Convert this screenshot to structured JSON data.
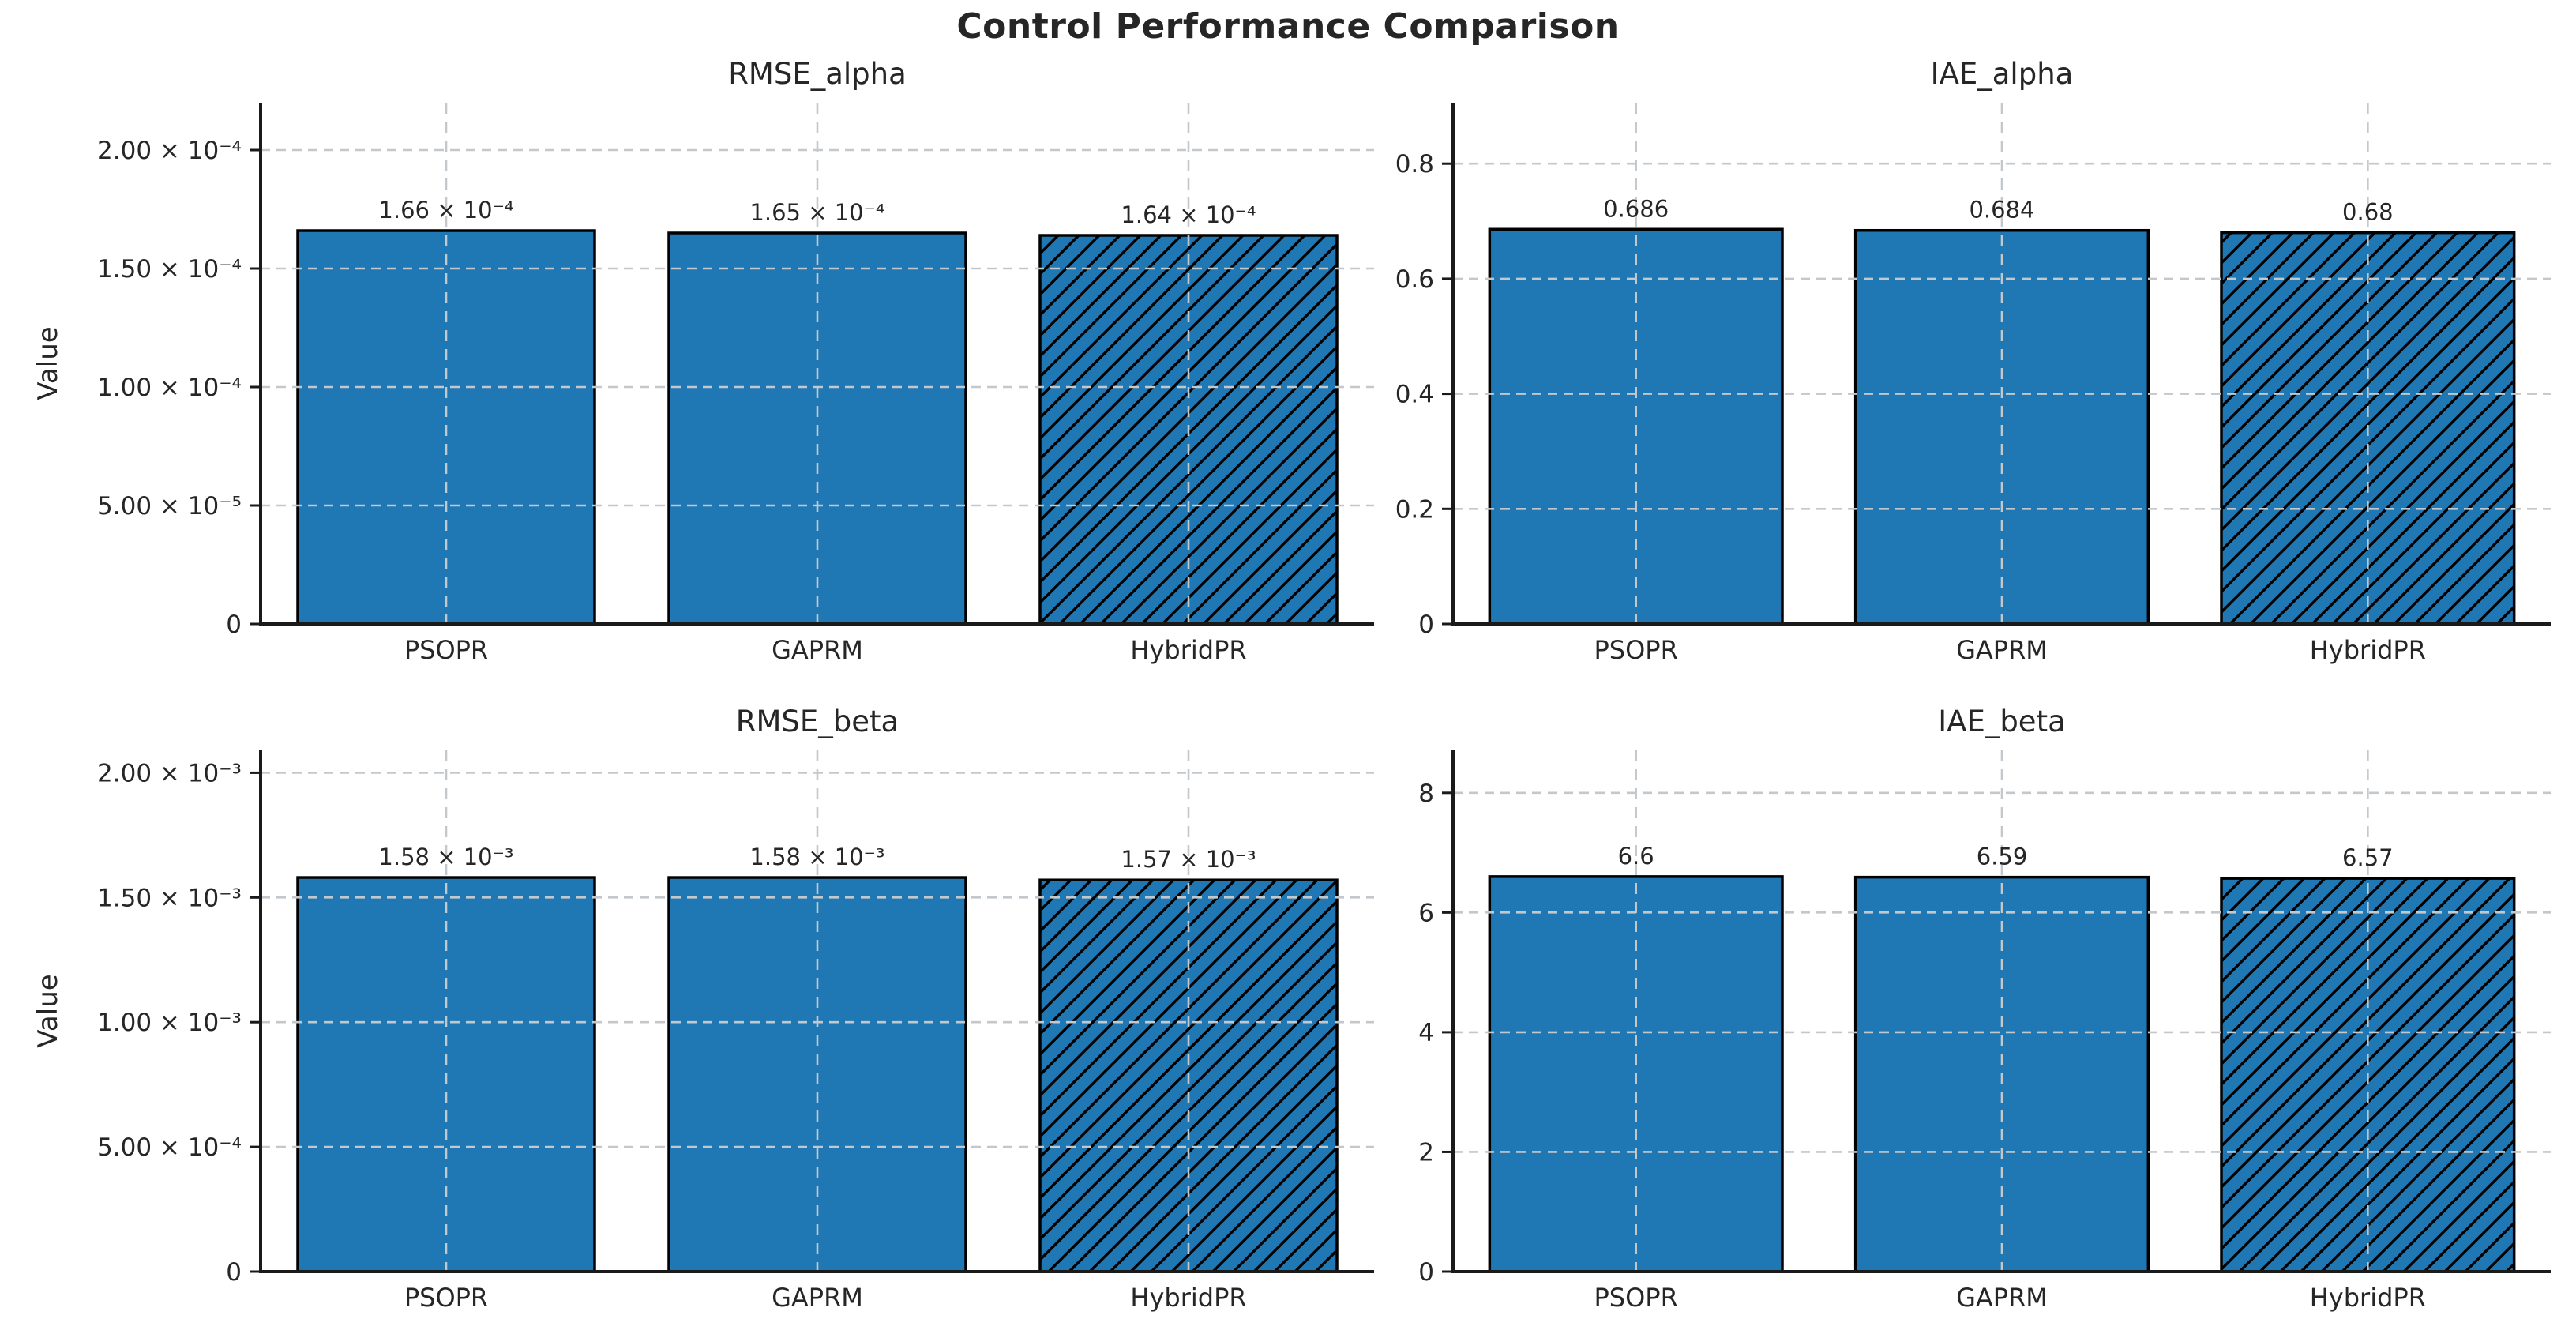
{
  "page": {
    "background": "#ffffff"
  },
  "chart_data": {
    "type": "bar",
    "suptitle": "Control Performance Comparison",
    "categories": [
      "PSOPR",
      "GAPRM",
      "HybridPR"
    ],
    "hatched_category": "HybridPR",
    "hatch_style": "//",
    "bar_color": "#1f77b4",
    "bar_edge_color": "#000000",
    "grid_color": "#c3c8cc",
    "grid_on": true,
    "grid_style": "dashed",
    "text_color": "#262626",
    "legend_position": "none",
    "subplots": [
      {
        "title": "RMSE_alpha",
        "ylabel": "Value",
        "values": [
          0.000166,
          0.000165,
          0.000164
        ],
        "value_labels": [
          "1.66 × 10⁻⁴",
          "1.65 × 10⁻⁴",
          "1.64 × 10⁻⁴"
        ],
        "yticks": [
          0,
          5e-05,
          0.0001,
          0.00015,
          0.0002
        ],
        "ytick_labels": [
          "0",
          "5.00 × 10⁻⁵",
          "1.00 × 10⁻⁴",
          "1.50 × 10⁻⁴",
          "2.00 × 10⁻⁴"
        ],
        "ylim": [
          0,
          0.00022
        ]
      },
      {
        "title": "IAE_alpha",
        "ylabel": "",
        "values": [
          0.686,
          0.684,
          0.68
        ],
        "value_labels": [
          "0.686",
          "0.684",
          "0.68"
        ],
        "yticks": [
          0,
          0.2,
          0.4,
          0.6,
          0.8
        ],
        "ytick_labels": [
          "0",
          "0.2",
          "0.4",
          "0.6",
          "0.8"
        ],
        "ylim": [
          0,
          0.906
        ]
      },
      {
        "title": "RMSE_beta",
        "ylabel": "Value",
        "values": [
          0.00158,
          0.00158,
          0.00157
        ],
        "value_labels": [
          "1.58 × 10⁻³",
          "1.58 × 10⁻³",
          "1.57 × 10⁻³"
        ],
        "yticks": [
          0,
          0.0005,
          0.001,
          0.0015,
          0.002
        ],
        "ytick_labels": [
          "0",
          "5.00 × 10⁻⁴",
          "1.00 × 10⁻³",
          "1.50 × 10⁻³",
          "2.00 × 10⁻³"
        ],
        "ylim": [
          0,
          0.00209
        ]
      },
      {
        "title": "IAE_beta",
        "ylabel": "",
        "values": [
          6.6,
          6.59,
          6.57
        ],
        "value_labels": [
          "6.6",
          "6.59",
          "6.57"
        ],
        "yticks": [
          0,
          2,
          4,
          6,
          8
        ],
        "ytick_labels": [
          "0",
          "2",
          "4",
          "6",
          "8"
        ],
        "ylim": [
          0,
          8.71
        ]
      }
    ]
  }
}
